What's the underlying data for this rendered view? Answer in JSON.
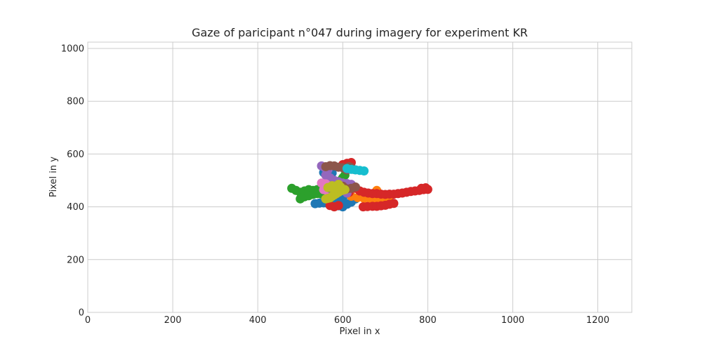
{
  "chart_data": {
    "type": "scatter",
    "title": "Gaze of paricipant n°047 during imagery for experiment KR",
    "xlabel": "Pixel in x",
    "ylabel": "Pixel in y",
    "xlim": [
      0,
      1280
    ],
    "ylim": [
      0,
      1024
    ],
    "xticks": [
      0,
      200,
      400,
      600,
      800,
      1000,
      1200
    ],
    "yticks": [
      0,
      200,
      400,
      600,
      800,
      1000
    ],
    "grid": true,
    "legend": "none",
    "series": [
      {
        "color": "#1f77b4",
        "points": [
          [
            535,
            412
          ],
          [
            545,
            414
          ],
          [
            555,
            415
          ],
          [
            565,
            413
          ],
          [
            575,
            410
          ],
          [
            590,
            404
          ],
          [
            600,
            400
          ],
          [
            610,
            410
          ],
          [
            620,
            418
          ],
          [
            630,
            430
          ],
          [
            640,
            440
          ],
          [
            600,
            430
          ],
          [
            590,
            420
          ],
          [
            575,
            405
          ],
          [
            560,
            450
          ],
          [
            550,
            470
          ],
          [
            555,
            530
          ],
          [
            565,
            535
          ],
          [
            575,
            528
          ]
        ]
      },
      {
        "color": "#ff7f0e",
        "points": [
          [
            620,
            440
          ],
          [
            635,
            435
          ],
          [
            650,
            432
          ],
          [
            665,
            430
          ],
          [
            680,
            430
          ],
          [
            690,
            432
          ],
          [
            700,
            435
          ],
          [
            710,
            440
          ],
          [
            680,
            462
          ],
          [
            660,
            450
          ],
          [
            645,
            445
          ]
        ]
      },
      {
        "color": "#2ca02c",
        "points": [
          [
            480,
            470
          ],
          [
            490,
            462
          ],
          [
            500,
            455
          ],
          [
            510,
            460
          ],
          [
            520,
            465
          ],
          [
            530,
            462
          ],
          [
            540,
            465
          ],
          [
            550,
            468
          ],
          [
            560,
            470
          ],
          [
            570,
            472
          ],
          [
            585,
            475
          ],
          [
            600,
            478
          ],
          [
            610,
            480
          ],
          [
            500,
            430
          ],
          [
            510,
            438
          ],
          [
            520,
            442
          ],
          [
            530,
            447
          ],
          [
            540,
            450
          ],
          [
            550,
            448
          ],
          [
            605,
            520
          ],
          [
            600,
            510
          ],
          [
            595,
            500
          ],
          [
            590,
            490
          ],
          [
            580,
            480
          ]
        ]
      },
      {
        "color": "#d62728",
        "points": [
          [
            600,
            560
          ],
          [
            610,
            565
          ],
          [
            620,
            568
          ],
          [
            630,
            470
          ],
          [
            640,
            460
          ],
          [
            650,
            455
          ],
          [
            660,
            452
          ],
          [
            670,
            450
          ],
          [
            680,
            450
          ],
          [
            690,
            448
          ],
          [
            700,
            447
          ],
          [
            710,
            448
          ],
          [
            720,
            448
          ],
          [
            730,
            450
          ],
          [
            740,
            452
          ],
          [
            750,
            455
          ],
          [
            760,
            458
          ],
          [
            770,
            460
          ],
          [
            780,
            462
          ],
          [
            790,
            465
          ],
          [
            800,
            466
          ],
          [
            795,
            472
          ],
          [
            785,
            470
          ],
          [
            648,
            400
          ],
          [
            658,
            401
          ],
          [
            670,
            402
          ],
          [
            680,
            402
          ],
          [
            690,
            404
          ],
          [
            700,
            406
          ],
          [
            710,
            410
          ],
          [
            720,
            413
          ],
          [
            570,
            405
          ],
          [
            580,
            400
          ],
          [
            590,
            405
          ],
          [
            610,
            480
          ],
          [
            615,
            455
          ]
        ]
      },
      {
        "color": "#9467bd",
        "points": [
          [
            550,
            555
          ],
          [
            558,
            548
          ],
          [
            565,
            540
          ],
          [
            560,
            520
          ],
          [
            570,
            510
          ],
          [
            580,
            500
          ],
          [
            590,
            495
          ],
          [
            600,
            490
          ],
          [
            610,
            488
          ],
          [
            620,
            485
          ],
          [
            600,
            470
          ],
          [
            590,
            460
          ],
          [
            610,
            452
          ]
        ]
      },
      {
        "color": "#8c564b",
        "points": [
          [
            560,
            552
          ],
          [
            570,
            556
          ],
          [
            580,
            555
          ],
          [
            590,
            550
          ],
          [
            600,
            548
          ],
          [
            605,
            545
          ],
          [
            610,
            540
          ],
          [
            615,
            552
          ],
          [
            620,
            548
          ],
          [
            625,
            542
          ],
          [
            630,
            475
          ],
          [
            620,
            470
          ],
          [
            610,
            468
          ],
          [
            600,
            478
          ],
          [
            590,
            483
          ]
        ]
      },
      {
        "color": "#e377c2",
        "points": [
          [
            550,
            490
          ],
          [
            560,
            487
          ],
          [
            570,
            478
          ],
          [
            555,
            465
          ],
          [
            565,
            458
          ]
        ]
      },
      {
        "color": "#7f7f7f",
        "points": [
          [
            570,
            470
          ],
          [
            580,
            465
          ],
          [
            590,
            462
          ]
        ]
      },
      {
        "color": "#bcbd22",
        "points": [
          [
            560,
            430
          ],
          [
            565,
            432
          ],
          [
            570,
            434
          ],
          [
            575,
            440
          ],
          [
            580,
            445
          ],
          [
            585,
            450
          ],
          [
            590,
            455
          ],
          [
            595,
            460
          ],
          [
            600,
            463
          ],
          [
            605,
            465
          ],
          [
            595,
            475
          ],
          [
            585,
            470
          ],
          [
            575,
            472
          ],
          [
            565,
            473
          ],
          [
            575,
            480
          ],
          [
            590,
            485
          ]
        ]
      },
      {
        "color": "#17becf",
        "points": [
          [
            610,
            545
          ],
          [
            620,
            542
          ],
          [
            630,
            540
          ],
          [
            640,
            538
          ],
          [
            650,
            536
          ]
        ]
      }
    ]
  }
}
